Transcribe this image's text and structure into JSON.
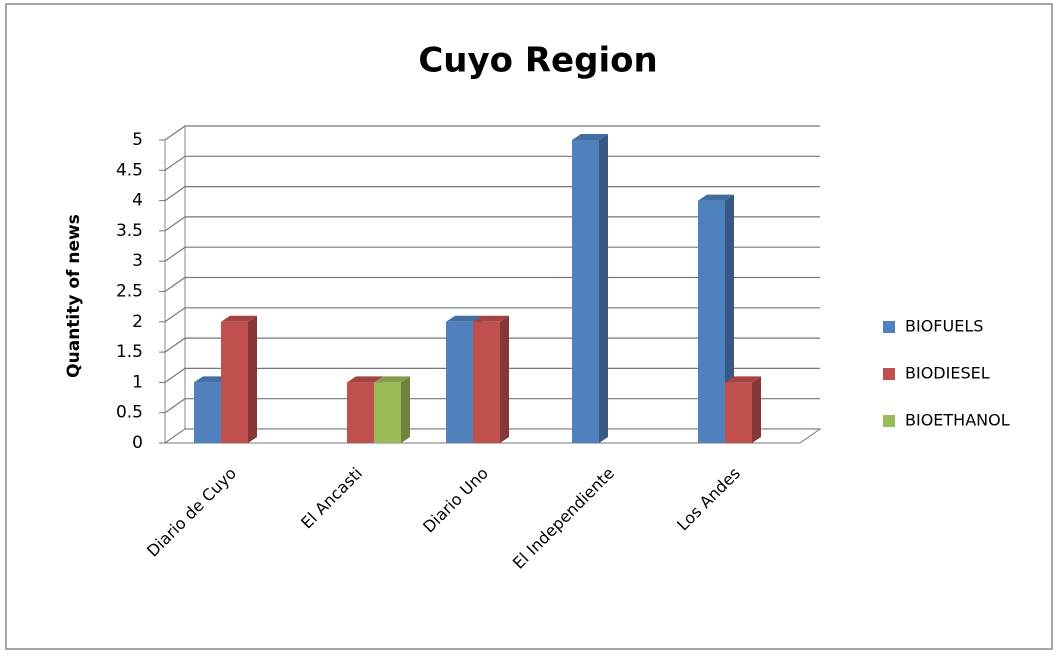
{
  "chart_data": {
    "type": "bar3d",
    "title": "Cuyo Region",
    "y_label": "Quantity of news",
    "categories": [
      "Diario de Cuyo",
      "El Ancasti",
      "Diario Uno",
      "El Independiente",
      "Los Andes"
    ],
    "series": [
      {
        "name": "BIOFUELS",
        "color": "#4f81bd",
        "values": [
          1,
          0,
          2,
          5,
          4
        ]
      },
      {
        "name": "BIODIESEL",
        "color": "#c0504d",
        "values": [
          2,
          1,
          2,
          0,
          1
        ]
      },
      {
        "name": "BIOETHANOL",
        "color": "#9bbb59",
        "values": [
          0,
          1,
          0,
          0,
          0
        ]
      }
    ],
    "ylim": [
      0,
      5
    ],
    "yticks": [
      0,
      0.5,
      1,
      1.5,
      2,
      2.5,
      3,
      3.5,
      4,
      4.5,
      5
    ],
    "grid": true,
    "legend": "right"
  }
}
